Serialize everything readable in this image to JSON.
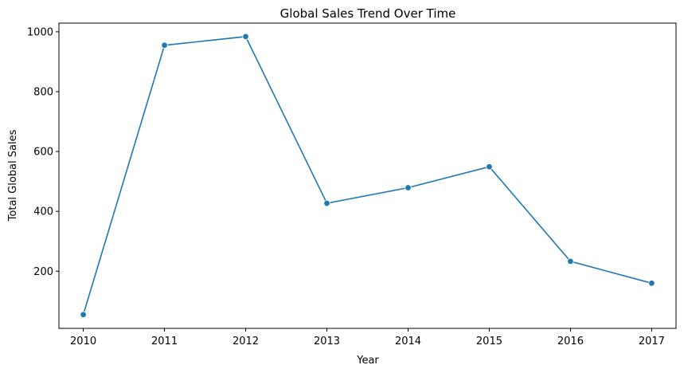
{
  "chart_data": {
    "type": "line",
    "title": "Global Sales Trend Over Time",
    "xlabel": "Year",
    "ylabel": "Total Global Sales",
    "x": [
      2010,
      2011,
      2012,
      2013,
      2014,
      2015,
      2016,
      2017
    ],
    "x_tick_labels": [
      "2010",
      "2011",
      "2012",
      "2013",
      "2014",
      "2015",
      "2016",
      "2017"
    ],
    "y_ticks": [
      200,
      400,
      600,
      800,
      1000
    ],
    "y_tick_labels": [
      "200",
      "400",
      "600",
      "800",
      "1000"
    ],
    "series": [
      {
        "values": [
          55,
          955,
          984,
          427,
          479,
          549,
          233,
          160
        ],
        "color": "#1f77b4",
        "marker": "circle"
      }
    ],
    "xlim": [
      2009.7,
      2017.3
    ],
    "ylim": [
      9,
      1029
    ],
    "grid": false,
    "legend": "none"
  }
}
